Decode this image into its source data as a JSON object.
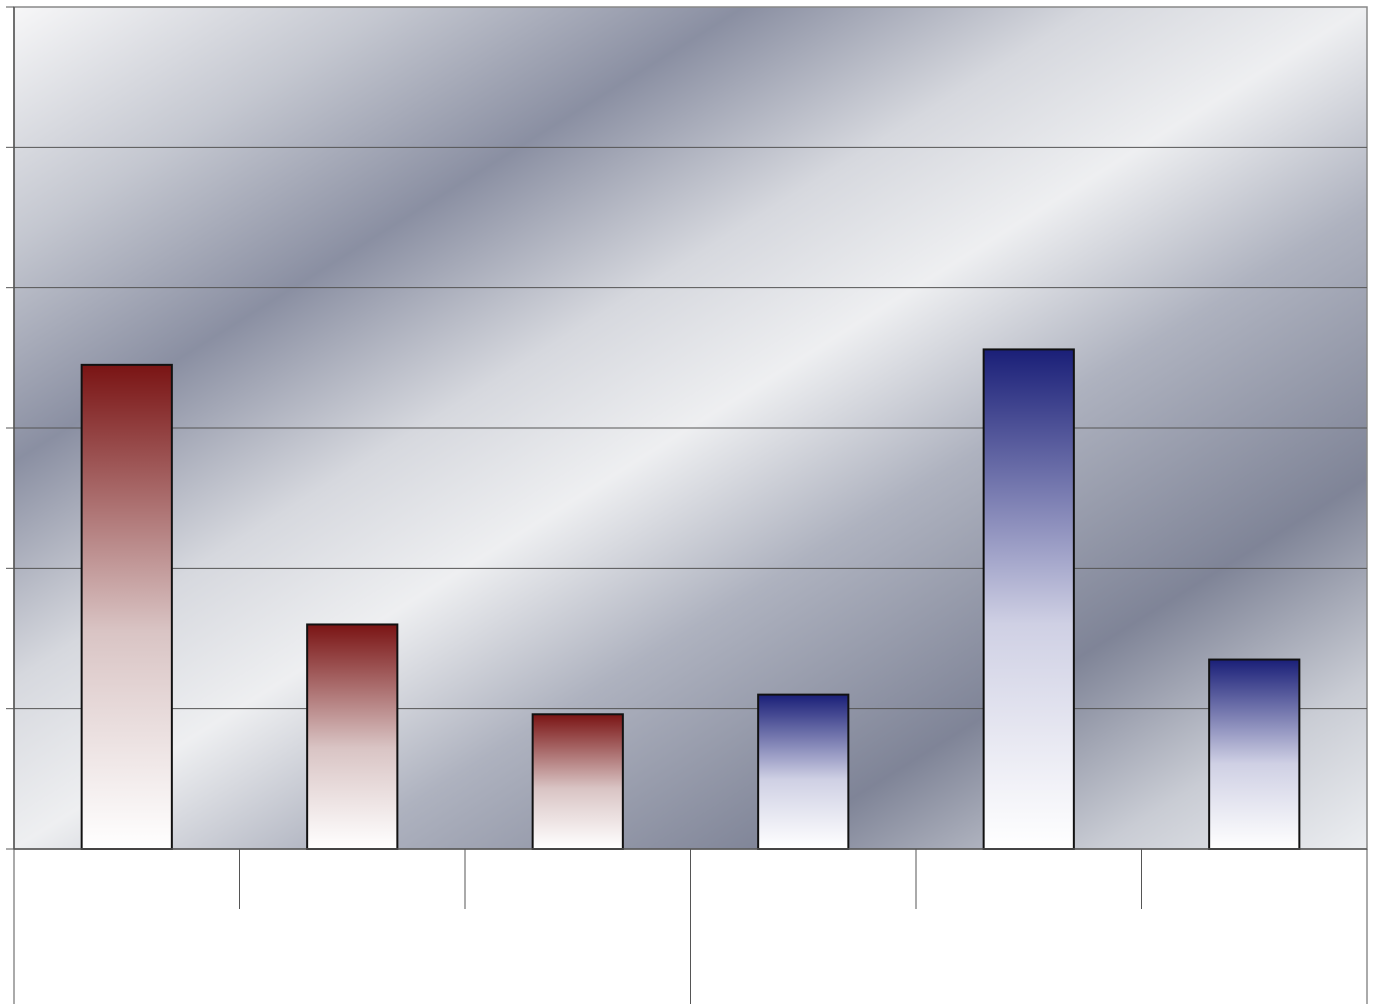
{
  "chart_data": {
    "type": "bar",
    "title": "",
    "xlabel": "",
    "ylabel": "",
    "ylim": [
      0,
      6
    ],
    "yticks": [
      0,
      1,
      2,
      3,
      4,
      5,
      6
    ],
    "grid": true,
    "legend": "none",
    "categories": [
      "",
      "",
      "",
      "",
      "",
      ""
    ],
    "values": [
      3.45,
      1.6,
      0.96,
      1.1,
      3.56,
      1.35
    ],
    "bar_colors": [
      "#7a1414",
      "#7a1414",
      "#7a1414",
      "#1a1f78",
      "#1a1f78",
      "#1a1f78"
    ],
    "group_count": 2
  }
}
